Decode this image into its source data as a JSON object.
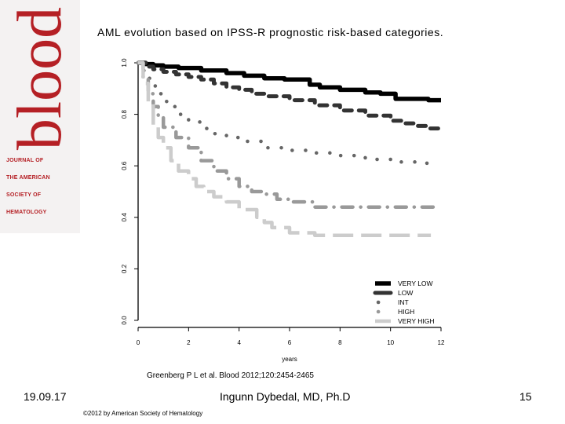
{
  "logo": {
    "word": "blood",
    "subtitle_lines": [
      "JOURNAL OF",
      "THE AMERICAN",
      "SOCIETY OF",
      "HEMATOLOGY"
    ]
  },
  "slide_title": "AML evolution based on IPSS-R prognostic risk-based categories.",
  "citation": "Greenberg P L et al. Blood 2012;120:2454-2465",
  "footer": {
    "date": "19.09.17",
    "author": "Ingunn Dybedal, MD, Ph.D",
    "page_number": "15",
    "copyright": "©2012 by American Society of Hematology"
  },
  "colors": {
    "logo_red": "#b52025",
    "very_low": "#000000",
    "low": "#333333",
    "int": "#666666",
    "high": "#999999",
    "very_high": "#cccccc"
  },
  "chart_data": {
    "type": "line",
    "title": "",
    "xlabel": "years",
    "ylabel": "",
    "xlim": [
      0,
      12
    ],
    "ylim": [
      0,
      1.0
    ],
    "x_ticks": [
      "0",
      "2",
      "4",
      "6",
      "8",
      "10",
      "12"
    ],
    "y_ticks": [
      "0.0",
      "0.2",
      "0.4",
      "0.6",
      "0.8",
      "1.0"
    ],
    "grid": false,
    "legend_position": "bottom-right",
    "series": [
      {
        "name": "VERY LOW",
        "color": "#000000",
        "style": "solid",
        "x": [
          0,
          0.3,
          0.6,
          1.0,
          1.6,
          2.5,
          3.5,
          4.2,
          5.0,
          5.8,
          6.8,
          7.2,
          8.0,
          9.0,
          9.6,
          10.2,
          11.5,
          12.0
        ],
        "y": [
          1.0,
          0.995,
          0.99,
          0.985,
          0.98,
          0.97,
          0.96,
          0.95,
          0.94,
          0.935,
          0.915,
          0.905,
          0.895,
          0.885,
          0.88,
          0.86,
          0.855,
          0.855
        ]
      },
      {
        "name": "LOW",
        "color": "#333333",
        "style": "dashed",
        "x": [
          0,
          0.3,
          0.6,
          1.0,
          1.5,
          2.0,
          2.5,
          3.0,
          3.5,
          4.0,
          4.5,
          5.0,
          6.0,
          7.0,
          8.0,
          9.0,
          10.0,
          10.5,
          11.0,
          11.5,
          12.0
        ],
        "y": [
          1.0,
          0.985,
          0.975,
          0.965,
          0.955,
          0.945,
          0.935,
          0.92,
          0.905,
          0.895,
          0.88,
          0.87,
          0.855,
          0.835,
          0.815,
          0.795,
          0.775,
          0.765,
          0.755,
          0.745,
          0.745
        ]
      },
      {
        "name": "INT",
        "color": "#666666",
        "style": "dotted",
        "x": [
          0,
          0.2,
          0.4,
          0.6,
          0.8,
          1.0,
          1.2,
          1.5,
          2.0,
          2.5,
          3.0,
          3.5,
          4.0,
          5.0,
          6.0,
          7.0,
          8.0,
          9.0,
          10.0,
          11.0,
          11.8
        ],
        "y": [
          1.0,
          0.97,
          0.94,
          0.91,
          0.88,
          0.85,
          0.83,
          0.8,
          0.77,
          0.745,
          0.725,
          0.71,
          0.695,
          0.67,
          0.66,
          0.65,
          0.64,
          0.625,
          0.615,
          0.61,
          0.61
        ]
      },
      {
        "name": "HIGH",
        "color": "#999999",
        "style": "dash-dot",
        "x": [
          0,
          0.2,
          0.4,
          0.6,
          0.8,
          1.0,
          1.5,
          2.0,
          2.5,
          3.0,
          3.5,
          4.0,
          4.5,
          5.0,
          5.5,
          6.0,
          7.0,
          8.0,
          9.0,
          10.0,
          11.0,
          11.8
        ],
        "y": [
          1.0,
          0.94,
          0.88,
          0.83,
          0.79,
          0.75,
          0.71,
          0.67,
          0.62,
          0.58,
          0.55,
          0.52,
          0.5,
          0.49,
          0.47,
          0.46,
          0.44,
          0.44,
          0.44,
          0.44,
          0.44,
          0.44
        ]
      },
      {
        "name": "VERY HIGH",
        "color": "#cccccc",
        "style": "long-dashed",
        "x": [
          0,
          0.2,
          0.4,
          0.6,
          0.8,
          1.0,
          1.3,
          1.6,
          2.0,
          2.3,
          2.6,
          3.0,
          3.5,
          4.0,
          4.3,
          4.7,
          5.0,
          5.3,
          6.0,
          7.0,
          8.0,
          9.0,
          10.0,
          11.0,
          11.6
        ],
        "y": [
          1.0,
          0.92,
          0.84,
          0.76,
          0.71,
          0.67,
          0.62,
          0.58,
          0.55,
          0.52,
          0.5,
          0.48,
          0.46,
          0.43,
          0.43,
          0.4,
          0.38,
          0.36,
          0.34,
          0.33,
          0.33,
          0.33,
          0.33,
          0.33,
          0.33
        ]
      }
    ]
  }
}
